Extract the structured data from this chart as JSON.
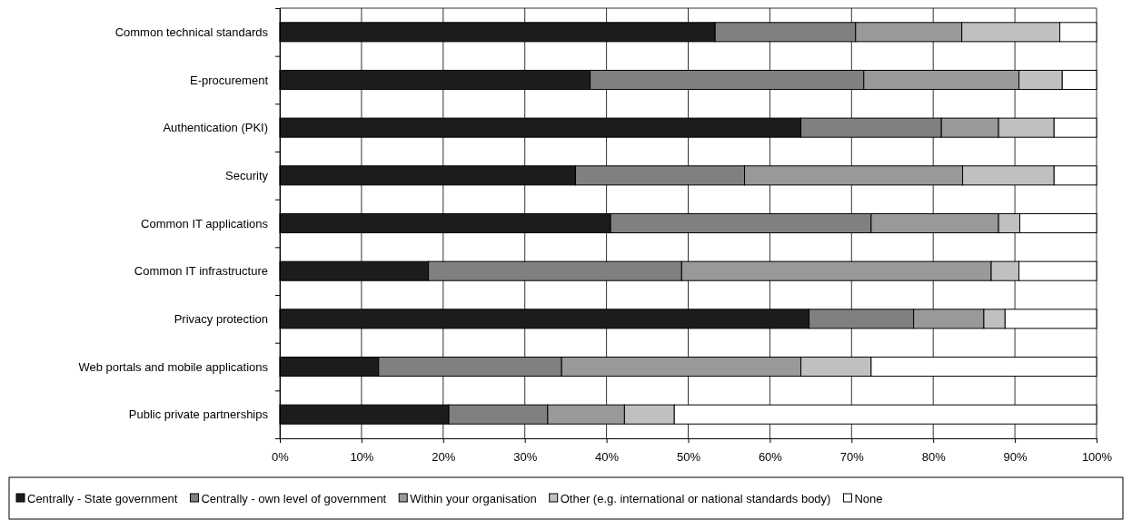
{
  "chart_data": {
    "type": "bar",
    "orientation": "horizontal",
    "stacked": true,
    "categories": [
      "Common technical standards",
      "E-procurement",
      "Authentication (PKI)",
      "Security",
      "Common IT applications",
      "Common IT infrastructure",
      "Privacy protection",
      "Web portals and mobile applications",
      "Public private partnerships"
    ],
    "series": [
      {
        "name": "Centrally - State government",
        "color": "#1c1c1c",
        "values": [
          53.3,
          38.0,
          63.8,
          36.2,
          40.5,
          18.2,
          64.8,
          12.1,
          20.7
        ]
      },
      {
        "name": "Centrally - own level of government",
        "color": "#808080",
        "values": [
          17.2,
          33.5,
          17.2,
          20.7,
          31.9,
          31.0,
          12.8,
          22.4,
          12.1
        ]
      },
      {
        "name": "Within your organisation",
        "color": "#999999",
        "values": [
          13.0,
          19.0,
          7.0,
          26.7,
          15.6,
          37.9,
          8.6,
          29.3,
          9.4
        ]
      },
      {
        "name": "Other (e.g. international or national standards body)",
        "color": "#c0c0c0",
        "values": [
          12.0,
          5.3,
          6.8,
          11.2,
          2.6,
          3.4,
          2.6,
          8.6,
          6.1
        ]
      },
      {
        "name": "None",
        "color": "#ffffff",
        "values": [
          4.5,
          4.2,
          5.2,
          5.2,
          9.4,
          9.5,
          11.2,
          27.6,
          51.7
        ]
      }
    ],
    "xlim": [
      0,
      100
    ],
    "xticks": [
      {
        "value": 0,
        "label": "0%"
      },
      {
        "value": 10,
        "label": "10%"
      },
      {
        "value": 20,
        "label": "20%"
      },
      {
        "value": 30,
        "label": "30%"
      },
      {
        "value": 40,
        "label": "40%"
      },
      {
        "value": 50,
        "label": "50%"
      },
      {
        "value": 60,
        "label": "60%"
      },
      {
        "value": 70,
        "label": "70%"
      },
      {
        "value": 80,
        "label": "80%"
      },
      {
        "value": 90,
        "label": "90%"
      },
      {
        "value": 100,
        "label": "100%"
      }
    ],
    "grid": "x",
    "legend": "bottom"
  }
}
